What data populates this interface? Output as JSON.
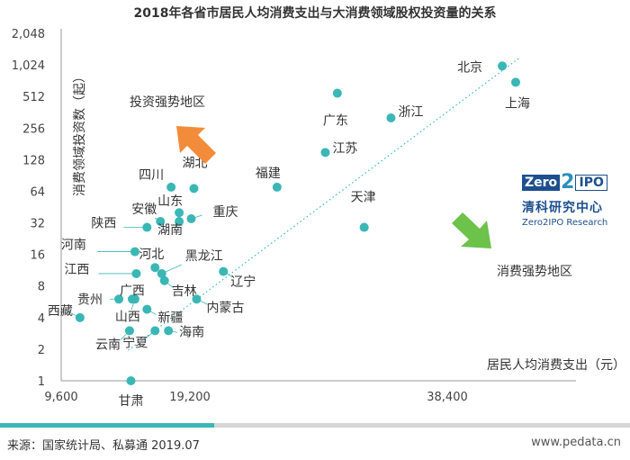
{
  "chart_data": {
    "type": "scatter",
    "title": "2018年各省市居民人均消费支出与大消费领域股权投资量的关系",
    "xlabel": "居民人均消费支出（元）",
    "ylabel": "消费领域投资数（起）",
    "x_scale": "linear",
    "y_scale": "log2",
    "xlim": [
      9600,
      48000
    ],
    "ylim": [
      1,
      2048
    ],
    "x_ticks": [
      9600,
      19200,
      38400
    ],
    "x_tick_labels": [
      "9,600",
      "19,200",
      "38,400"
    ],
    "y_ticks": [
      1,
      2,
      4,
      8,
      16,
      32,
      64,
      128,
      256,
      512,
      1024,
      2048
    ],
    "y_tick_labels": [
      "1",
      "2",
      "4",
      "8",
      "16",
      "32",
      "64",
      "128",
      "256",
      "512",
      "1,024",
      "2,048"
    ],
    "trend_line": "dotted",
    "grid": false,
    "points": [
      {
        "name": "北京",
        "x": 42500,
        "y": 1000
      },
      {
        "name": "上海",
        "x": 43500,
        "y": 700
      },
      {
        "name": "广东",
        "x": 30200,
        "y": 550
      },
      {
        "name": "浙江",
        "x": 34200,
        "y": 320
      },
      {
        "name": "江苏",
        "x": 29300,
        "y": 150
      },
      {
        "name": "福建",
        "x": 25700,
        "y": 70
      },
      {
        "name": "四川",
        "x": 17800,
        "y": 70
      },
      {
        "name": "湖北",
        "x": 19500,
        "y": 68
      },
      {
        "name": "山东",
        "x": 18400,
        "y": 40
      },
      {
        "name": "重庆",
        "x": 19300,
        "y": 35
      },
      {
        "name": "湖南",
        "x": 18400,
        "y": 33
      },
      {
        "name": "安徽",
        "x": 17000,
        "y": 33
      },
      {
        "name": "陕西",
        "x": 16000,
        "y": 29
      },
      {
        "name": "天津",
        "x": 32200,
        "y": 29
      },
      {
        "name": "河南",
        "x": 15100,
        "y": 17
      },
      {
        "name": "河北",
        "x": 16600,
        "y": 12
      },
      {
        "name": "黑龙江",
        "x": 17100,
        "y": 10.5
      },
      {
        "name": "辽宁",
        "x": 21700,
        "y": 11
      },
      {
        "name": "江西",
        "x": 15200,
        "y": 10.5
      },
      {
        "name": "吉林",
        "x": 17300,
        "y": 9
      },
      {
        "name": "贵州",
        "x": 13900,
        "y": 6
      },
      {
        "name": "广西",
        "x": 14900,
        "y": 6
      },
      {
        "name": "内蒙古",
        "x": 19700,
        "y": 6
      },
      {
        "name": "西藏",
        "x": 11000,
        "y": 4
      },
      {
        "name": "山西",
        "x": 15100,
        "y": 6
      },
      {
        "name": "新疆",
        "x": 16000,
        "y": 4.8
      },
      {
        "name": "云南",
        "x": 14700,
        "y": 3
      },
      {
        "name": "宁夏",
        "x": 16600,
        "y": 3
      },
      {
        "name": "海南",
        "x": 17600,
        "y": 3
      },
      {
        "name": "甘肃",
        "x": 14800,
        "y": 1
      }
    ],
    "annotations": [
      {
        "text": "投资强势地区",
        "color": "#f28c3a"
      },
      {
        "text": "消费强势地区",
        "color": "#5cbf3a"
      }
    ],
    "point_color": "#3ab7b5",
    "arrow_orange": "#f28c3a",
    "arrow_green": "#6cc24a"
  },
  "footer": {
    "source": "来源：国家统计局、私募通 2019.07",
    "site": "www.pedata.cn"
  },
  "logo": {
    "zero": "Zero",
    "two": "2",
    "ipo": "IPO",
    "cn": "清科研究中心",
    "en": "Zero2IPO Research"
  }
}
